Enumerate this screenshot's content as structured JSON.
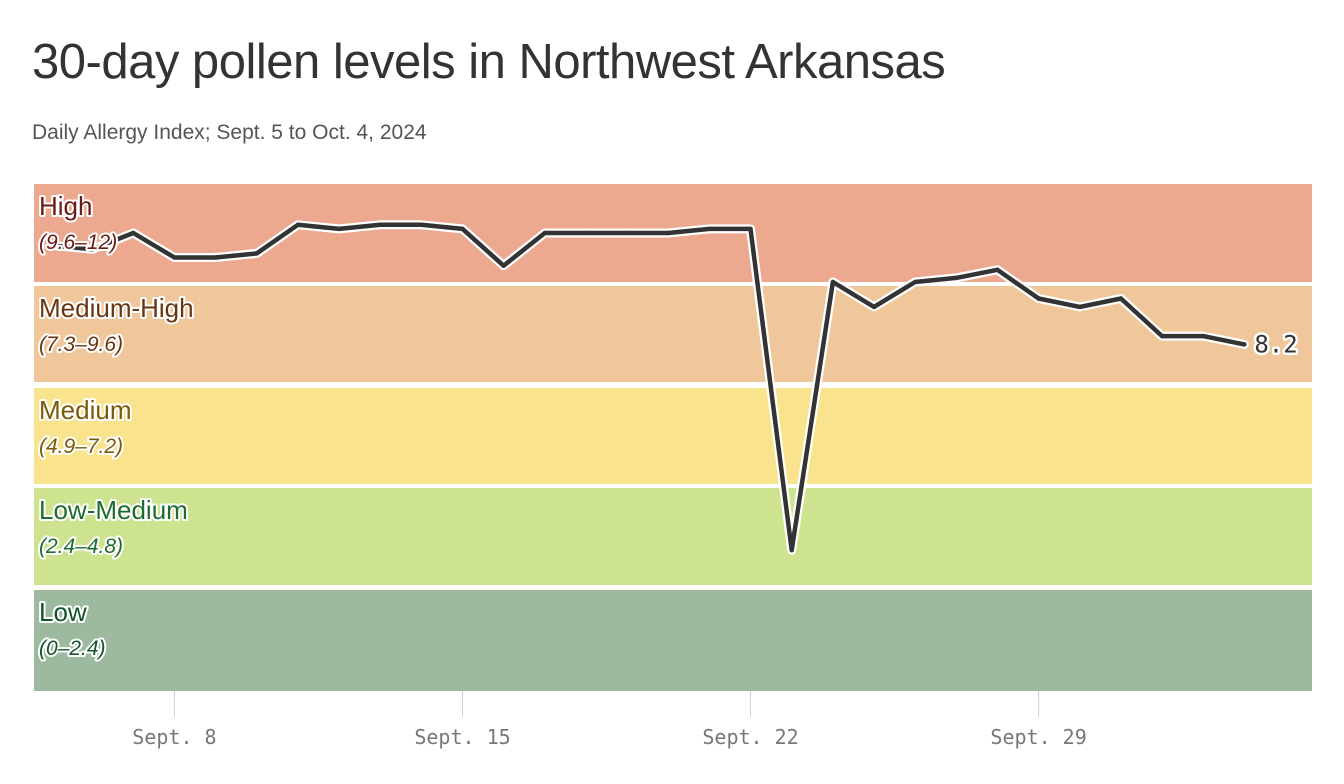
{
  "title": "30-day pollen levels in Northwest Arkansas",
  "subtitle": "Daily Allergy Index; Sept. 5 to Oct. 4, 2024",
  "chart_data": {
    "type": "line",
    "title": "30-day pollen levels in Northwest Arkansas",
    "subtitle": "Daily Allergy Index; Sept. 5 to Oct. 4, 2024",
    "xlabel": "",
    "ylabel": "",
    "ylim": [
      0,
      12
    ],
    "grid": false,
    "line_color": "#333333",
    "bands": [
      {
        "label": "High",
        "range": "(9.6–12)",
        "from": 9.6,
        "to": 12,
        "color": "#eca98f",
        "text_color": "#6b1a16"
      },
      {
        "label": "Medium-High",
        "range": "(7.3–9.6)",
        "from": 7.3,
        "to": 9.6,
        "color": "#f0c79a",
        "text_color": "#6b3510"
      },
      {
        "label": "Medium",
        "range": "(4.9–7.2)",
        "from": 4.9,
        "to": 7.3,
        "color": "#f9e48d",
        "text_color": "#7a5a0a"
      },
      {
        "label": "Low-Medium",
        "range": "(2.4–4.8)",
        "from": 2.4,
        "to": 4.9,
        "color": "#cee38f",
        "text_color": "#1f6b2e"
      },
      {
        "label": "Low",
        "range": "(0–2.4)",
        "from": 0,
        "to": 2.4,
        "color": "#9eba9e",
        "text_color": "#14532d"
      }
    ],
    "x_ticks": [
      {
        "date": "2024-09-08",
        "label": "Sept. 8"
      },
      {
        "date": "2024-09-15",
        "label": "Sept. 15"
      },
      {
        "date": "2024-09-22",
        "label": "Sept. 22"
      },
      {
        "date": "2024-09-29",
        "label": "Sept. 29"
      }
    ],
    "end_label": "8.2",
    "x": [
      "2024-09-05",
      "2024-09-06",
      "2024-09-07",
      "2024-09-08",
      "2024-09-09",
      "2024-09-10",
      "2024-09-11",
      "2024-09-12",
      "2024-09-13",
      "2024-09-14",
      "2024-09-15",
      "2024-09-16",
      "2024-09-17",
      "2024-09-18",
      "2024-09-19",
      "2024-09-20",
      "2024-09-21",
      "2024-09-22",
      "2024-09-23",
      "2024-09-24",
      "2024-09-25",
      "2024-09-26",
      "2024-09-27",
      "2024-09-28",
      "2024-09-29",
      "2024-09-30",
      "2024-10-01",
      "2024-10-02",
      "2024-10-03",
      "2024-10-04"
    ],
    "series": [
      {
        "values": [
          10.5,
          10.4,
          10.8,
          10.2,
          10.2,
          10.3,
          11.0,
          10.9,
          11.0,
          11.0,
          10.9,
          10.0,
          10.8,
          10.8,
          10.8,
          10.8,
          10.9,
          10.9,
          3.3,
          9.6,
          9.1,
          9.6,
          9.7,
          9.9,
          9.3,
          9.1,
          9.3,
          8.4,
          8.4,
          8.2
        ]
      }
    ]
  }
}
